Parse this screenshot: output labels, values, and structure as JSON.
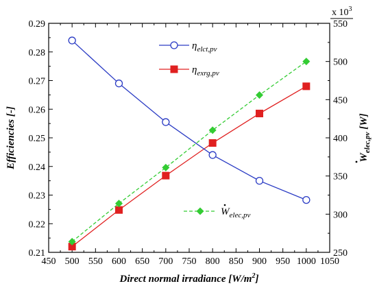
{
  "chart_data": {
    "type": "line",
    "xlabel": "Direct normal irradiance [W/m",
    "xlabel_sup": "2",
    "xlabel_tail": "]",
    "ylabel_left": "Efficiencies [-]",
    "ylabel_right": "W",
    "ylabel_right_sub": "elec,pv",
    "ylabel_right_tail": " [W]",
    "right_multiplier": "x 10",
    "right_multiplier_sup": "3",
    "x": [
      500,
      600,
      700,
      800,
      900,
      1000
    ],
    "xlim": [
      450,
      1050
    ],
    "x_ticks": [
      "450",
      "500",
      "550",
      "600",
      "650",
      "700",
      "750",
      "800",
      "850",
      "900",
      "950",
      "1000",
      "1050"
    ],
    "ylim_left": [
      0.21,
      0.29
    ],
    "y_left_ticks": [
      "0.21",
      "0.22",
      "0.23",
      "0.24",
      "0.25",
      "0.26",
      "0.27",
      "0.28",
      "0.29"
    ],
    "ylim_right": [
      250,
      550
    ],
    "y_right_ticks": [
      "250",
      "300",
      "350",
      "400",
      "450",
      "500",
      "550"
    ],
    "series": [
      {
        "name": "η",
        "name_sub": "elct,pv",
        "axis": "left",
        "color": "#2a3bc4",
        "marker": "circle-open",
        "dash": "solid",
        "values": [
          0.284,
          0.269,
          0.2555,
          0.244,
          0.235,
          0.2283
        ]
      },
      {
        "name": "η",
        "name_sub": "exrg,pv",
        "axis": "left",
        "color": "#e02020",
        "marker": "square",
        "dash": "solid",
        "values": [
          0.212,
          0.2248,
          0.2368,
          0.2482,
          0.2585,
          0.268
        ]
      },
      {
        "name": "W",
        "name_sub": "elec,pv",
        "axis": "right",
        "color": "#33cc33",
        "marker": "diamond",
        "dash": "dashed",
        "values": [
          264,
          314,
          361,
          410,
          456,
          500
        ]
      }
    ],
    "grid": false
  }
}
